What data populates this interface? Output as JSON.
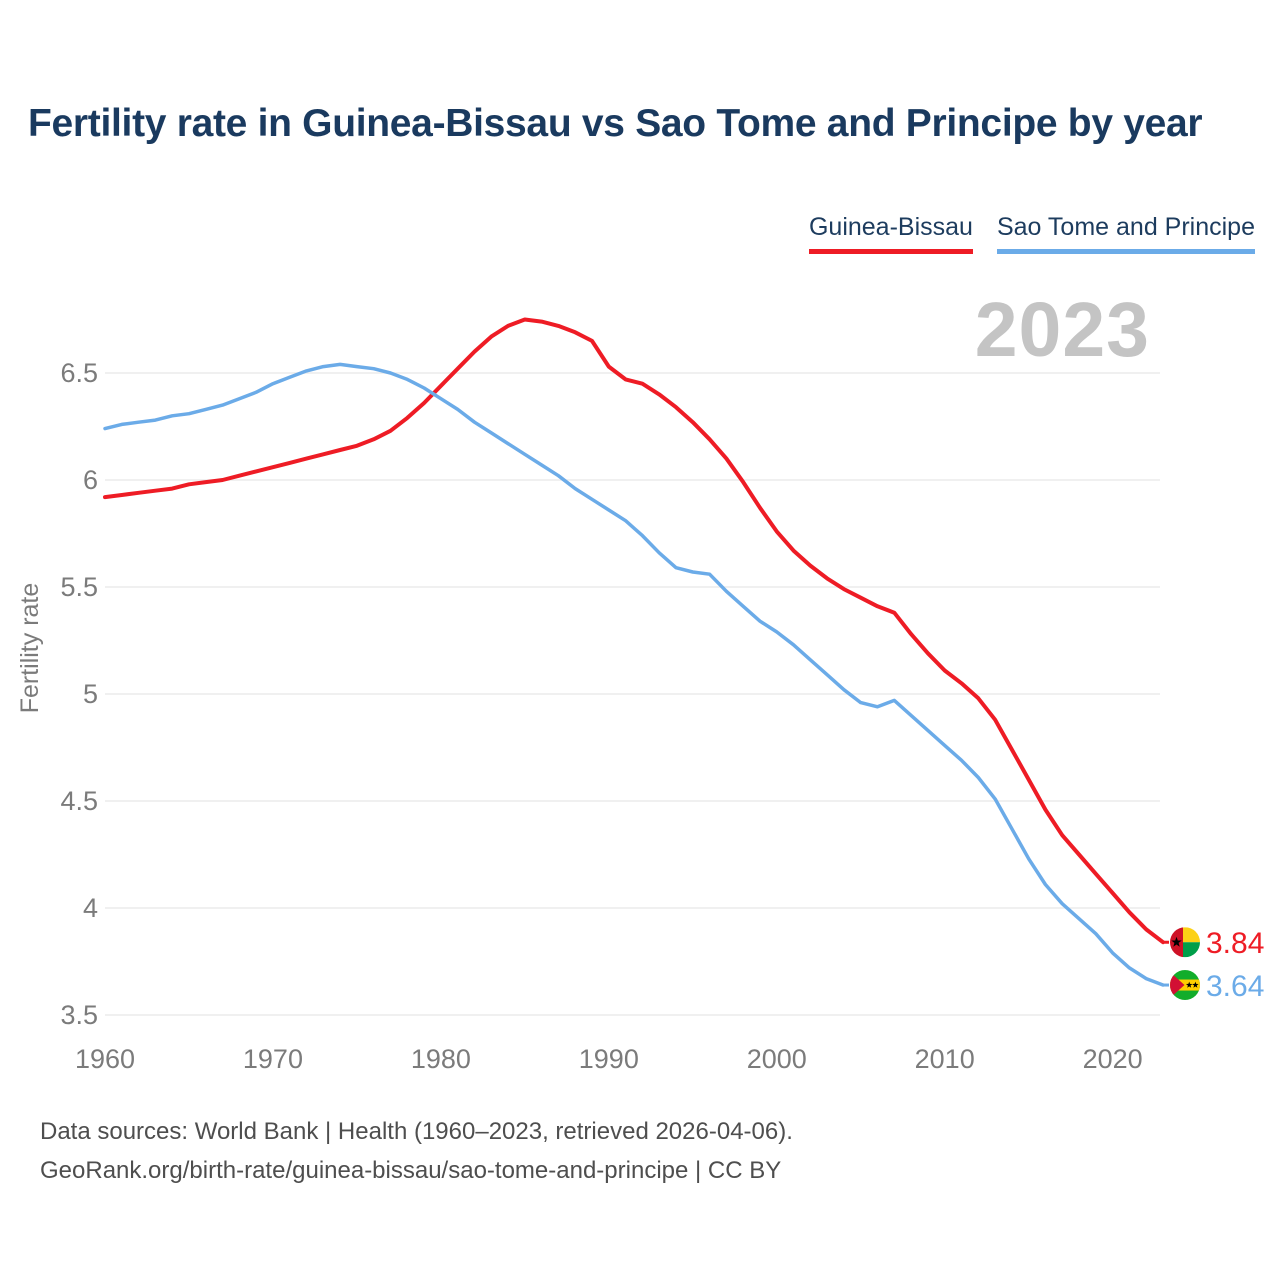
{
  "header": {
    "title": "Fertility rate in Guinea-Bissau vs Sao Tome and Principe by year"
  },
  "legend": {
    "position": "top-right",
    "items": [
      {
        "label": "Guinea-Bissau",
        "color": "#ee1c25"
      },
      {
        "label": "Sao Tome and Principe",
        "color": "#6babe8"
      }
    ]
  },
  "watermark": "2023",
  "chart_data": {
    "type": "line",
    "title": "Fertility rate in Guinea-Bissau vs Sao Tome and Principe by year",
    "xlabel": "",
    "ylabel": "Fertility rate",
    "xlim": [
      1960,
      2023
    ],
    "ylim": [
      3.5,
      6.9
    ],
    "grid": "horizontal",
    "legend_position": "top-right",
    "x_ticks": [
      1960,
      1970,
      1980,
      1990,
      2000,
      2010,
      2020
    ],
    "y_ticks": [
      3.5,
      4,
      4.5,
      5,
      5.5,
      6,
      6.5
    ],
    "x": [
      1960,
      1961,
      1962,
      1963,
      1964,
      1965,
      1966,
      1967,
      1968,
      1969,
      1970,
      1971,
      1972,
      1973,
      1974,
      1975,
      1976,
      1977,
      1978,
      1979,
      1980,
      1981,
      1982,
      1983,
      1984,
      1985,
      1986,
      1987,
      1988,
      1989,
      1990,
      1991,
      1992,
      1993,
      1994,
      1995,
      1996,
      1997,
      1998,
      1999,
      2000,
      2001,
      2002,
      2003,
      2004,
      2005,
      2006,
      2007,
      2008,
      2009,
      2010,
      2011,
      2012,
      2013,
      2014,
      2015,
      2016,
      2017,
      2018,
      2019,
      2020,
      2021,
      2022,
      2023
    ],
    "series": [
      {
        "name": "Guinea-Bissau",
        "color": "#ee1c25",
        "end_label": "3.84",
        "end_value": 3.84,
        "values": [
          5.92,
          5.93,
          5.94,
          5.95,
          5.96,
          5.98,
          5.99,
          6.0,
          6.02,
          6.04,
          6.06,
          6.08,
          6.1,
          6.12,
          6.14,
          6.16,
          6.19,
          6.23,
          6.29,
          6.36,
          6.44,
          6.52,
          6.6,
          6.67,
          6.72,
          6.75,
          6.74,
          6.72,
          6.69,
          6.65,
          6.53,
          6.47,
          6.45,
          6.4,
          6.34,
          6.27,
          6.19,
          6.1,
          5.99,
          5.87,
          5.76,
          5.67,
          5.6,
          5.54,
          5.49,
          5.45,
          5.41,
          5.38,
          5.28,
          5.19,
          5.11,
          5.05,
          4.98,
          4.88,
          4.74,
          4.6,
          4.46,
          4.34,
          4.25,
          4.16,
          4.07,
          3.98,
          3.9,
          3.84
        ]
      },
      {
        "name": "Sao Tome and Principe",
        "color": "#6babe8",
        "end_label": "3.64",
        "end_value": 3.64,
        "values": [
          6.24,
          6.26,
          6.27,
          6.28,
          6.3,
          6.31,
          6.33,
          6.35,
          6.38,
          6.41,
          6.45,
          6.48,
          6.51,
          6.53,
          6.54,
          6.53,
          6.52,
          6.5,
          6.47,
          6.43,
          6.38,
          6.33,
          6.27,
          6.22,
          6.17,
          6.12,
          6.07,
          6.02,
          5.96,
          5.91,
          5.86,
          5.81,
          5.74,
          5.66,
          5.59,
          5.57,
          5.56,
          5.48,
          5.41,
          5.34,
          5.29,
          5.23,
          5.16,
          5.09,
          5.02,
          4.96,
          4.94,
          4.97,
          4.9,
          4.83,
          4.76,
          4.69,
          4.61,
          4.51,
          4.37,
          4.23,
          4.11,
          4.02,
          3.95,
          3.88,
          3.79,
          3.72,
          3.67,
          3.64
        ]
      }
    ],
    "style": {
      "grid_color": "#ececec",
      "tick_color": "#7b7b7b",
      "watermark_color": "#c4c4c4"
    }
  },
  "footer": {
    "line1": "Data sources: World Bank | Health (1960–2023, retrieved 2026-04-06).",
    "line2": "GeoRank.org/birth-rate/guinea-bissau/sao-tome-and-principe | CC BY"
  }
}
